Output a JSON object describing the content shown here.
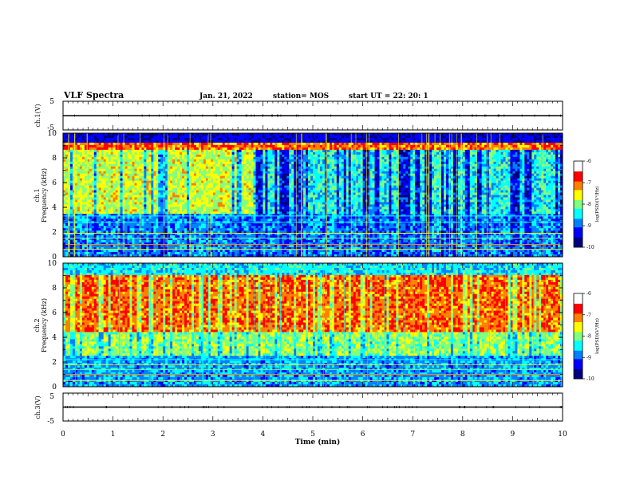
{
  "header": {
    "title": "VLF Spectra",
    "date": "Jan. 21, 2022",
    "station": "station= MOS",
    "start": "start  UT =   22: 20: 1"
  },
  "colors": {
    "scale": [
      "#000080",
      "#0000ff",
      "#0080ff",
      "#00ffff",
      "#80ff80",
      "#ffff00",
      "#ff8000",
      "#ff0000",
      "#ffffff"
    ],
    "background": "#ffffff",
    "trace": "#000000"
  },
  "chart_data": [
    {
      "type": "line",
      "panel": "waveform-ch1",
      "ylabel": "ch.1(V)",
      "ylim": [
        -5,
        5
      ],
      "yticks": [
        "5",
        "-5"
      ],
      "x": [
        0,
        10
      ],
      "values": [
        0,
        0
      ]
    },
    {
      "type": "heatmap",
      "panel": "spectrogram-ch1",
      "ylabel": "ch.1\nFrequency (kHz)",
      "ylim": [
        0,
        10
      ],
      "yticks": [
        "0",
        "2",
        "4",
        "6",
        "8",
        "10"
      ],
      "colorbar": {
        "label": "log(PSD)(V²/Hz)",
        "range": [
          -10,
          -6
        ],
        "ticks": [
          "-6",
          "-7",
          "-8",
          "-9",
          "-10"
        ]
      }
    },
    {
      "type": "heatmap",
      "panel": "spectrogram-ch2",
      "ylabel": "ch.2\nFrequency (kHz)",
      "ylim": [
        0,
        10
      ],
      "yticks": [
        "0",
        "2",
        "4",
        "6",
        "8",
        "10"
      ],
      "colorbar": {
        "label": "log(PSD)(V²/Hz)",
        "range": [
          -10,
          -6
        ],
        "ticks": [
          "-6",
          "-7",
          "-8",
          "-9",
          "-10"
        ]
      }
    },
    {
      "type": "line",
      "panel": "waveform-ch3",
      "ylabel": "ch.3(V)",
      "ylim": [
        -5,
        5
      ],
      "yticks": [
        "5",
        "-5"
      ],
      "x": [
        0,
        10
      ],
      "values": [
        0,
        0
      ]
    }
  ],
  "xaxis": {
    "label": "Time (min)",
    "range": [
      0,
      10
    ],
    "ticks": [
      "0",
      "1",
      "2",
      "3",
      "4",
      "5",
      "6",
      "7",
      "8",
      "9",
      "10"
    ]
  }
}
